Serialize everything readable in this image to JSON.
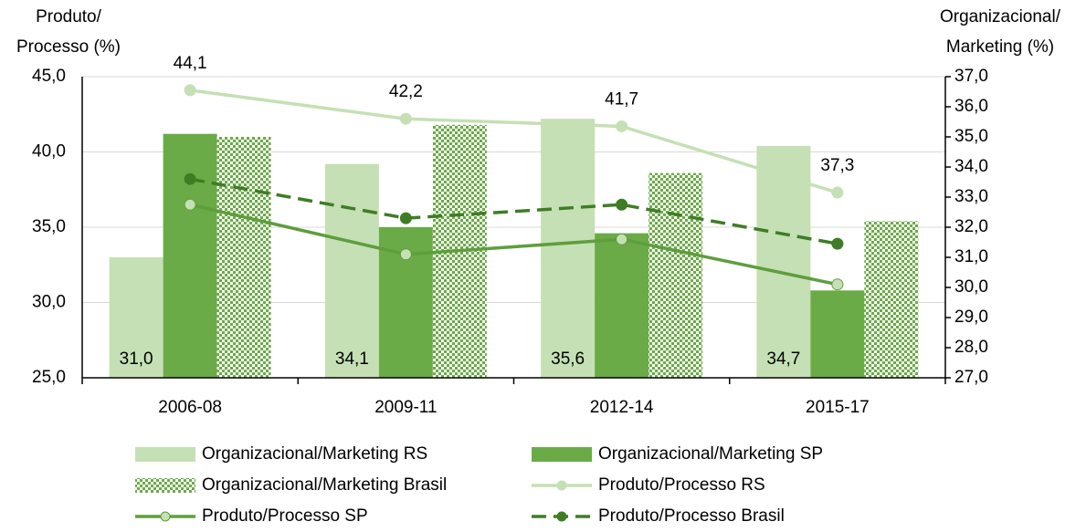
{
  "chart_data": {
    "type": "bar_line",
    "y_label": [
      "Produto/",
      "Processo (%)"
    ],
    "y2_label": [
      "Organizacional/",
      "Marketing (%)"
    ],
    "categories": [
      "2006-08",
      "2009-11",
      "2012-14",
      "2015-17"
    ],
    "ylim": [
      25,
      45
    ],
    "yticks": [
      {
        "value": 25,
        "label": "25,0"
      },
      {
        "value": 30,
        "label": "30,0"
      },
      {
        "value": 35,
        "label": "35,0"
      },
      {
        "value": 40,
        "label": "40,0"
      },
      {
        "value": 45,
        "label": "45,0"
      }
    ],
    "y2lim": [
      27,
      37
    ],
    "y2ticks": [
      {
        "value": 27,
        "label": "27,0"
      },
      {
        "value": 28,
        "label": "28,0"
      },
      {
        "value": 29,
        "label": "29,0"
      },
      {
        "value": 30,
        "label": "30,0"
      },
      {
        "value": 31,
        "label": "31,0"
      },
      {
        "value": 32,
        "label": "32,0"
      },
      {
        "value": 33,
        "label": "33,0"
      },
      {
        "value": 34,
        "label": "34,0"
      },
      {
        "value": 35,
        "label": "35,0"
      },
      {
        "value": 36,
        "label": "36,0"
      },
      {
        "value": 37,
        "label": "37,0"
      }
    ],
    "grid": true,
    "series": [
      {
        "name": "Organizacional/Marketing RS",
        "type": "bar",
        "axis": "y2",
        "color": "#c5e0b4",
        "values": [
          31.0,
          34.1,
          35.6,
          34.7
        ],
        "value_labels": [
          "31,0",
          "34,1",
          "35,6",
          "34,7"
        ]
      },
      {
        "name": "Organizacional/Marketing SP",
        "type": "bar",
        "axis": "y2",
        "color": "#6aab47",
        "values": [
          35.1,
          32.0,
          31.8,
          29.9
        ]
      },
      {
        "name": "Organizacional/Marketing Brasil",
        "type": "bar",
        "axis": "y2",
        "color": "#6aab47",
        "pattern": "checker",
        "values": [
          35.0,
          35.4,
          33.8,
          32.2
        ]
      },
      {
        "name": "Produto/Processo RS",
        "type": "line",
        "color": "#c5e0b4",
        "marker_color": "#c5e0b4",
        "values": [
          44.1,
          42.2,
          41.7,
          37.3
        ],
        "value_labels": [
          "44,1",
          "42,2",
          "41,7",
          "37,3"
        ]
      },
      {
        "name": "Produto/Processo SP",
        "type": "line",
        "color": "#5e9e3d",
        "marker_color": "#c5e0b4",
        "values": [
          36.5,
          33.2,
          34.2,
          31.2
        ]
      },
      {
        "name": "Produto/Processo Brasil",
        "type": "line",
        "color": "#3f7d25",
        "marker_color": "#3f7d25",
        "dashed": true,
        "values": [
          38.2,
          35.6,
          36.5,
          33.9
        ]
      }
    ]
  }
}
